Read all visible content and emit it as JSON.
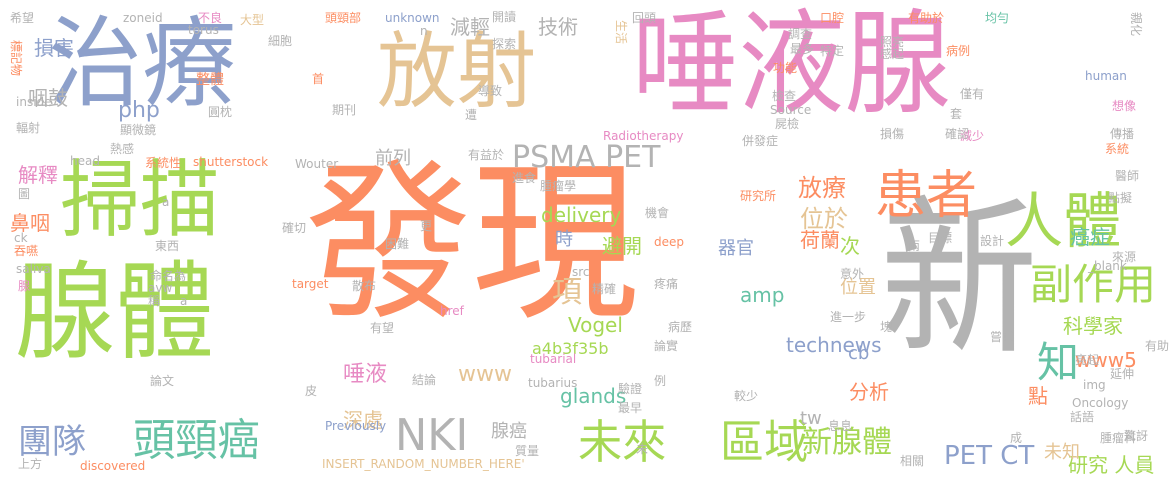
{
  "palette": {
    "orange": "#fc8d62",
    "green": "#a6d854",
    "blue": "#8da0cb",
    "pink": "#e78ac3",
    "tan": "#e5c494",
    "teal": "#66c2a5",
    "gray": "#b3b3b3",
    "yellow": "#ffd92f"
  },
  "words": [
    {
      "text": "發現",
      "color": "#fc8d62"
    },
    {
      "text": "新",
      "color": "#b3b3b3"
    },
    {
      "text": "唾液腺",
      "color": "#e78ac3"
    },
    {
      "text": "治療",
      "color": "#8da0cb"
    },
    {
      "text": "放射",
      "color": "#e5c494"
    },
    {
      "text": "腺體",
      "color": "#a6d854"
    },
    {
      "text": "掃描",
      "color": "#a6d854"
    },
    {
      "text": "人體",
      "color": "#a6d854"
    },
    {
      "text": "患者",
      "color": "#fc8d62"
    },
    {
      "text": "頭頸癌",
      "color": "#66c2a5"
    },
    {
      "text": "未來",
      "color": "#a6d854"
    },
    {
      "text": "區域",
      "color": "#a6d854"
    },
    {
      "text": "NKI",
      "color": "#b3b3b3"
    },
    {
      "text": "副作用",
      "color": "#a6d854"
    },
    {
      "text": "PSMA PET",
      "color": "#b3b3b3"
    },
    {
      "text": "新腺體",
      "color": "#a6d854"
    },
    {
      "text": "團隊",
      "color": "#8da0cb"
    },
    {
      "text": "知",
      "color": "#66c2a5"
    },
    {
      "text": "PET CT",
      "color": "#8da0cb"
    },
    {
      "text": "研究 人員",
      "color": "#a6d854"
    },
    {
      "text": "項",
      "color": "#e5c494"
    },
    {
      "text": "放療",
      "color": "#fc8d62"
    },
    {
      "text": "位於",
      "color": "#e5c494"
    },
    {
      "text": "delivery",
      "color": "#a6d854"
    },
    {
      "text": "Vogel",
      "color": "#a6d854"
    },
    {
      "text": "荷蘭",
      "color": "#fc8d62"
    },
    {
      "text": "次",
      "color": "#a6d854"
    },
    {
      "text": "癌症",
      "color": "#66c2a5"
    },
    {
      "text": "科學家",
      "color": "#a6d854"
    },
    {
      "text": "www5",
      "color": "#fc8d62"
    },
    {
      "text": "technews",
      "color": "#8da0cb"
    },
    {
      "text": "glands",
      "color": "#66c2a5"
    },
    {
      "text": "amp",
      "color": "#66c2a5"
    },
    {
      "text": "器官",
      "color": "#8da0cb"
    },
    {
      "text": "避開",
      "color": "#a6d854"
    },
    {
      "text": "時",
      "color": "#8da0cb"
    },
    {
      "text": "技術",
      "color": "#b3b3b3"
    },
    {
      "text": "減輕",
      "color": "#b3b3b3"
    },
    {
      "text": "前列",
      "color": "#b3b3b3"
    },
    {
      "text": "唾液",
      "color": "#e78ac3"
    },
    {
      "text": "深處",
      "color": "#e5c494"
    },
    {
      "text": "解釋",
      "color": "#e78ac3"
    },
    {
      "text": "鼻咽",
      "color": "#fc8d62"
    },
    {
      "text": "咽鼓",
      "color": "#b3b3b3"
    },
    {
      "text": "損害",
      "color": "#8da0cb"
    },
    {
      "text": "php",
      "color": "#8da0cb"
    },
    {
      "text": "分析",
      "color": "#fc8d62"
    },
    {
      "text": "點",
      "color": "#fc8d62"
    },
    {
      "text": "未知",
      "color": "#e5c494"
    },
    {
      "text": "位置",
      "color": "#e5c494"
    },
    {
      "text": "腺癌",
      "color": "#b3b3b3"
    },
    {
      "text": "a4b3f35b",
      "color": "#a6d854"
    },
    {
      "text": "www",
      "color": "#e5c494"
    },
    {
      "text": "cb",
      "color": "#8da0cb"
    },
    {
      "text": "tw",
      "color": "#b3b3b3"
    },
    {
      "text": "希望",
      "color": "#b3b3b3"
    },
    {
      "text": "標記物",
      "color": "#fc8d62"
    },
    {
      "text": "zoneid",
      "color": "#b3b3b3"
    },
    {
      "text": "不良",
      "color": "#e78ac3"
    },
    {
      "text": "大型",
      "color": "#e5c494"
    },
    {
      "text": "torus",
      "color": "#b3b3b3"
    },
    {
      "text": "頭頸部",
      "color": "#fc8d62"
    },
    {
      "text": "unknown",
      "color": "#8da0cb"
    },
    {
      "text": "細胞",
      "color": "#b3b3b3"
    },
    {
      "text": "n",
      "color": "#b3b3b3"
    },
    {
      "text": "開讀",
      "color": "#b3b3b3"
    },
    {
      "text": "探索",
      "color": "#b3b3b3"
    },
    {
      "text": "生活",
      "color": "#e5c494"
    },
    {
      "text": "回頭",
      "color": "#b3b3b3"
    },
    {
      "text": "口腔",
      "color": "#fc8d62"
    },
    {
      "text": "有助於",
      "color": "#fc8d62"
    },
    {
      "text": "均勻",
      "color": "#66c2a5"
    },
    {
      "text": "親化",
      "color": "#b3b3b3"
    },
    {
      "text": "調查",
      "color": "#b3b3b3"
    },
    {
      "text": "照亮",
      "color": "#b3b3b3"
    },
    {
      "text": "最多",
      "color": "#b3b3b3"
    },
    {
      "text": "特定",
      "color": "#b3b3b3"
    },
    {
      "text": "感起",
      "color": "#b3b3b3"
    },
    {
      "text": "病例",
      "color": "#fc8d62"
    },
    {
      "text": "human",
      "color": "#8da0cb"
    },
    {
      "text": "整體",
      "color": "#fc8d62"
    },
    {
      "text": "首",
      "color": "#fc8d62"
    },
    {
      "text": "功能",
      "color": "#fc8d62"
    },
    {
      "text": "檢查",
      "color": "#b3b3b3"
    },
    {
      "text": "僅有",
      "color": "#b3b3b3"
    },
    {
      "text": "想像",
      "color": "#e78ac3"
    },
    {
      "text": "inside",
      "color": "#b3b3b3"
    },
    {
      "text": "圓枕",
      "color": "#b3b3b3"
    },
    {
      "text": "導致",
      "color": "#b3b3b3"
    },
    {
      "text": "Source",
      "color": "#b3b3b3"
    },
    {
      "text": "套",
      "color": "#b3b3b3"
    },
    {
      "text": "減少",
      "color": "#e78ac3"
    },
    {
      "text": "輻射",
      "color": "#b3b3b3"
    },
    {
      "text": "顯微鏡",
      "color": "#b3b3b3"
    },
    {
      "text": "期刊",
      "color": "#b3b3b3"
    },
    {
      "text": "遭",
      "color": "#b3b3b3"
    },
    {
      "text": "屍檢",
      "color": "#b3b3b3"
    },
    {
      "text": "確認",
      "color": "#b3b3b3"
    },
    {
      "text": "損傷",
      "color": "#b3b3b3"
    },
    {
      "text": "傳播",
      "color": "#b3b3b3"
    },
    {
      "text": "熱感",
      "color": "#b3b3b3"
    },
    {
      "text": "Radiotherapy",
      "color": "#e78ac3"
    },
    {
      "text": "併發症",
      "color": "#b3b3b3"
    },
    {
      "text": "系統",
      "color": "#fc8d62"
    },
    {
      "text": "head",
      "color": "#b3b3b3"
    },
    {
      "text": "系統性",
      "color": "#fc8d62"
    },
    {
      "text": "shutterstock",
      "color": "#fc8d62"
    },
    {
      "text": "Wouter",
      "color": "#b3b3b3"
    },
    {
      "text": "有益於",
      "color": "#b3b3b3"
    },
    {
      "text": "進食",
      "color": "#b3b3b3"
    },
    {
      "text": "腫瘤學",
      "color": "#b3b3b3"
    },
    {
      "text": "醫師",
      "color": "#b3b3b3"
    },
    {
      "text": "圖",
      "color": "#b3b3b3"
    },
    {
      "text": "點擬",
      "color": "#b3b3b3"
    },
    {
      "text": "研究所",
      "color": "#fc8d62"
    },
    {
      "text": "確切",
      "color": "#b3b3b3"
    },
    {
      "text": "a",
      "color": "#b3b3b3"
    },
    {
      "text": "機會",
      "color": "#b3b3b3"
    },
    {
      "text": "ck",
      "color": "#b3b3b3"
    },
    {
      "text": "吞嚥",
      "color": "#fc8d62"
    },
    {
      "text": "東西",
      "color": "#b3b3b3"
    },
    {
      "text": "更",
      "color": "#b3b3b3"
    },
    {
      "text": "困難",
      "color": "#b3b3b3"
    },
    {
      "text": "deep",
      "color": "#fc8d62"
    },
    {
      "text": "兩",
      "color": "#b3b3b3"
    },
    {
      "text": "目標",
      "color": "#b3b3b3"
    },
    {
      "text": "設計",
      "color": "#b3b3b3"
    },
    {
      "text": "來源",
      "color": "#b3b3b3"
    },
    {
      "text": "saliva",
      "color": "#b3b3b3"
    },
    {
      "text": "_blank",
      "color": "#b3b3b3"
    },
    {
      "text": "腺",
      "color": "#e78ac3"
    },
    {
      "text": "命名為",
      "color": "#b3b3b3"
    },
    {
      "text": "target",
      "color": "#fc8d62"
    },
    {
      "text": "散布",
      "color": "#b3b3b3"
    },
    {
      "text": "src",
      "color": "#b3b3b3"
    },
    {
      "text": "精確",
      "color": "#b3b3b3"
    },
    {
      "text": "疼痛",
      "color": "#b3b3b3"
    },
    {
      "text": "意外",
      "color": "#b3b3b3"
    },
    {
      "text": "avw",
      "color": "#b3b3b3"
    },
    {
      "text": "稱",
      "color": "#b3b3b3"
    },
    {
      "text": "a",
      "color": "#b3b3b3"
    },
    {
      "text": "href",
      "color": "#e78ac3"
    },
    {
      "text": "有望",
      "color": "#b3b3b3"
    },
    {
      "text": "病歷",
      "color": "#b3b3b3"
    },
    {
      "text": "進一步",
      "color": "#b3b3b3"
    },
    {
      "text": "塊",
      "color": "#b3b3b3"
    },
    {
      "text": "嘗試",
      "color": "#b3b3b3"
    },
    {
      "text": "有助",
      "color": "#b3b3b3"
    },
    {
      "text": "論實",
      "color": "#b3b3b3"
    },
    {
      "text": "tubarial",
      "color": "#e78ac3"
    },
    {
      "text": "亮起",
      "color": "#b3b3b3"
    },
    {
      "text": "延伸",
      "color": "#b3b3b3"
    },
    {
      "text": "結論",
      "color": "#b3b3b3"
    },
    {
      "text": "tubarius",
      "color": "#b3b3b3"
    },
    {
      "text": "例",
      "color": "#b3b3b3"
    },
    {
      "text": "img",
      "color": "#b3b3b3"
    },
    {
      "text": "論文",
      "color": "#b3b3b3"
    },
    {
      "text": "皮",
      "color": "#b3b3b3"
    },
    {
      "text": "驗證",
      "color": "#b3b3b3"
    },
    {
      "text": "較少",
      "color": "#b3b3b3"
    },
    {
      "text": "Oncology",
      "color": "#b3b3b3"
    },
    {
      "text": "最早",
      "color": "#b3b3b3"
    },
    {
      "text": "話語",
      "color": "#b3b3b3"
    },
    {
      "text": "驚訝",
      "color": "#b3b3b3"
    },
    {
      "text": "Previously",
      "color": "#8da0cb"
    },
    {
      "text": "息息",
      "color": "#b3b3b3"
    },
    {
      "text": "腫瘤科",
      "color": "#b3b3b3"
    },
    {
      "text": "質量",
      "color": "#b3b3b3"
    },
    {
      "text": "成",
      "color": "#b3b3b3"
    },
    {
      "text": "上方",
      "color": "#b3b3b3"
    },
    {
      "text": "discovered",
      "color": "#fc8d62"
    },
    {
      "text": "INSERT_RANDOM_NUMBER_HERE'",
      "color": "#e5c494"
    },
    {
      "text": "未",
      "color": "#b3b3b3"
    },
    {
      "text": "相關",
      "color": "#b3b3b3"
    }
  ]
}
